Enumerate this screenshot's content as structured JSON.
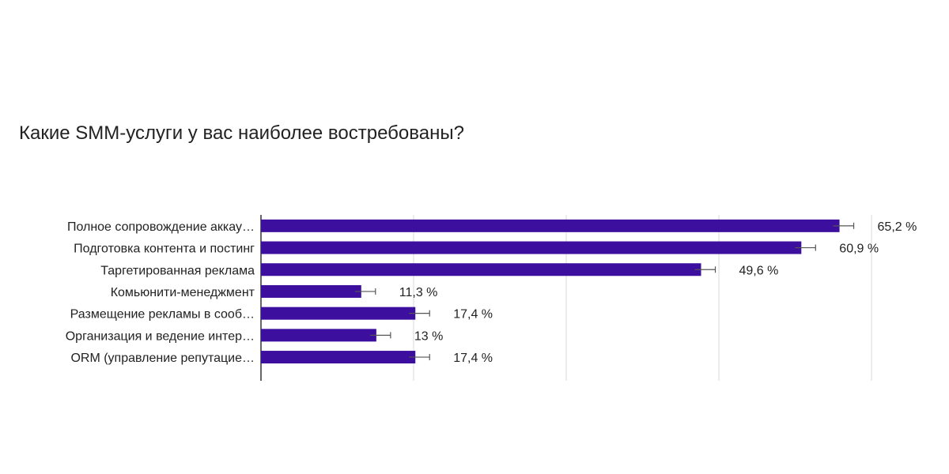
{
  "chart_data": {
    "type": "bar",
    "orientation": "horizontal",
    "title": "Какие SMM-услуги у вас наиболее востребованы?",
    "categories": [
      "Полное сопровождение аккау…",
      "Подготовка контента и постинг",
      "Таргетированная реклама",
      "Комьюнити-менеджмент",
      "Размещение рекламы в сооб…",
      "Организация и ведение интер…",
      "ORM (управление репутацие…"
    ],
    "values": [
      65.2,
      60.9,
      49.6,
      11.3,
      17.4,
      13,
      17.4
    ],
    "value_labels": [
      "65,2 %",
      "60,9 %",
      "49,6 %",
      "11,3 %",
      "17,4 %",
      "13 %",
      "17,4 %"
    ],
    "xlim": [
      0,
      75
    ],
    "grid": true,
    "bar_color": "#3d0f9e",
    "error_bars": true
  }
}
